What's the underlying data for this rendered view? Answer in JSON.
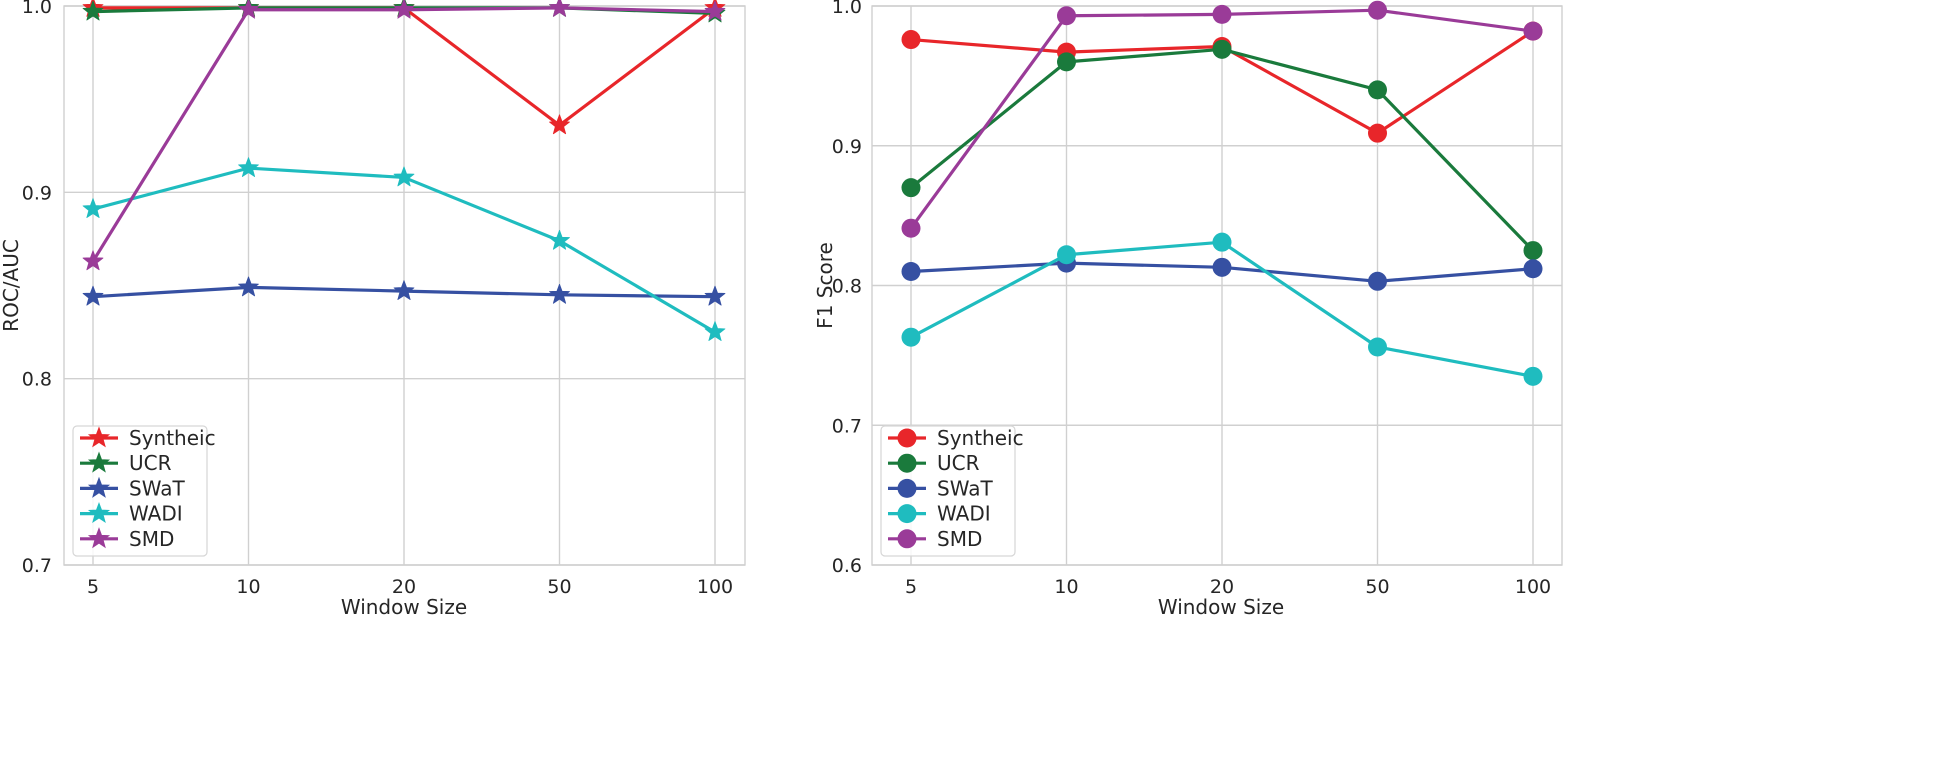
{
  "chart_data": [
    {
      "type": "line",
      "marker": "star",
      "title": "",
      "xlabel": "Window Size",
      "ylabel": "ROC/AUC",
      "categories": [
        "5",
        "10",
        "20",
        "50",
        "100"
      ],
      "ylim": [
        0.7,
        1.0
      ],
      "yticks": [
        "0.7",
        "0.8",
        "0.9",
        "1.0"
      ],
      "grid": true,
      "legend_position": "bottom-left",
      "series": [
        {
          "name": "Syntheic",
          "color": "#e8262a",
          "values": [
            0.999,
            0.999,
            0.999,
            0.936,
            0.999
          ]
        },
        {
          "name": "UCR",
          "color": "#1a7a3c",
          "values": [
            0.997,
            0.999,
            0.999,
            0.999,
            0.996
          ]
        },
        {
          "name": "SWaT",
          "color": "#3650a2",
          "values": [
            0.844,
            0.849,
            0.847,
            0.845,
            0.844
          ]
        },
        {
          "name": "WADI",
          "color": "#1fbcbf",
          "values": [
            0.891,
            0.913,
            0.908,
            0.874,
            0.825
          ]
        },
        {
          "name": "SMD",
          "color": "#9a3b98",
          "values": [
            0.863,
            0.998,
            0.998,
            0.999,
            0.997
          ]
        }
      ]
    },
    {
      "type": "line",
      "marker": "circle",
      "title": "",
      "xlabel": "Window Size",
      "ylabel": "F1 Score",
      "categories": [
        "5",
        "10",
        "20",
        "50",
        "100"
      ],
      "ylim": [
        0.6,
        1.0
      ],
      "yticks": [
        "0.6",
        "0.7",
        "0.8",
        "0.9",
        "1.0"
      ],
      "grid": true,
      "legend_position": "bottom-left",
      "series": [
        {
          "name": "Syntheic",
          "color": "#e8262a",
          "values": [
            0.976,
            0.967,
            0.971,
            0.909,
            0.982
          ]
        },
        {
          "name": "UCR",
          "color": "#1a7a3c",
          "values": [
            0.87,
            0.96,
            0.969,
            0.94,
            0.825
          ]
        },
        {
          "name": "SWaT",
          "color": "#3650a2",
          "values": [
            0.81,
            0.816,
            0.813,
            0.803,
            0.812
          ]
        },
        {
          "name": "WADI",
          "color": "#1fbcbf",
          "values": [
            0.763,
            0.822,
            0.831,
            0.756,
            0.735
          ]
        },
        {
          "name": "SMD",
          "color": "#9a3b98",
          "values": [
            0.841,
            0.993,
            0.994,
            0.997,
            0.982
          ]
        }
      ]
    }
  ]
}
